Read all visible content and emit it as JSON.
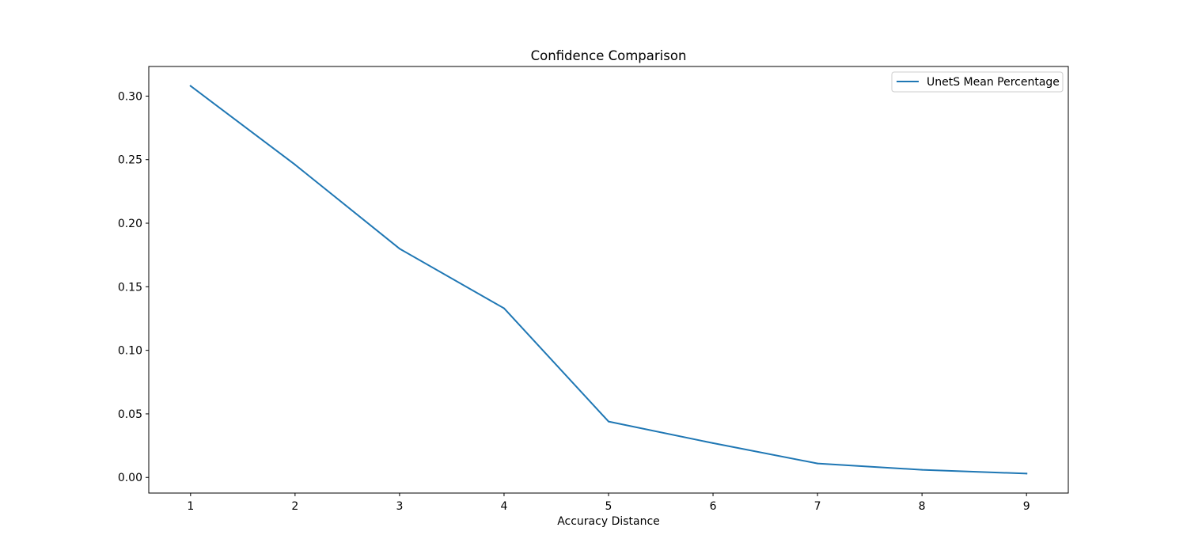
{
  "chart_data": {
    "type": "line",
    "title": "Confidence Comparison",
    "xlabel": "Accuracy Distance",
    "ylabel": "",
    "x": [
      1,
      2,
      3,
      4,
      5,
      6,
      7,
      8,
      9
    ],
    "series": [
      {
        "name": "UnetS Mean Percentage",
        "color": "#1f77b4",
        "values": [
          0.308,
          0.246,
          0.18,
          0.133,
          0.044,
          0.027,
          0.011,
          0.006,
          0.003
        ]
      }
    ],
    "xlim": [
      0.6,
      9.4
    ],
    "ylim": [
      -0.0123,
      0.3233
    ],
    "xticks": [
      1,
      2,
      3,
      4,
      5,
      6,
      7,
      8,
      9
    ],
    "yticks": [
      0.0,
      0.05,
      0.1,
      0.15,
      0.2,
      0.25,
      0.3
    ],
    "ytick_labels": [
      "0.00",
      "0.05",
      "0.10",
      "0.15",
      "0.20",
      "0.25",
      "0.30"
    ],
    "grid": false,
    "legend": "top-right"
  }
}
